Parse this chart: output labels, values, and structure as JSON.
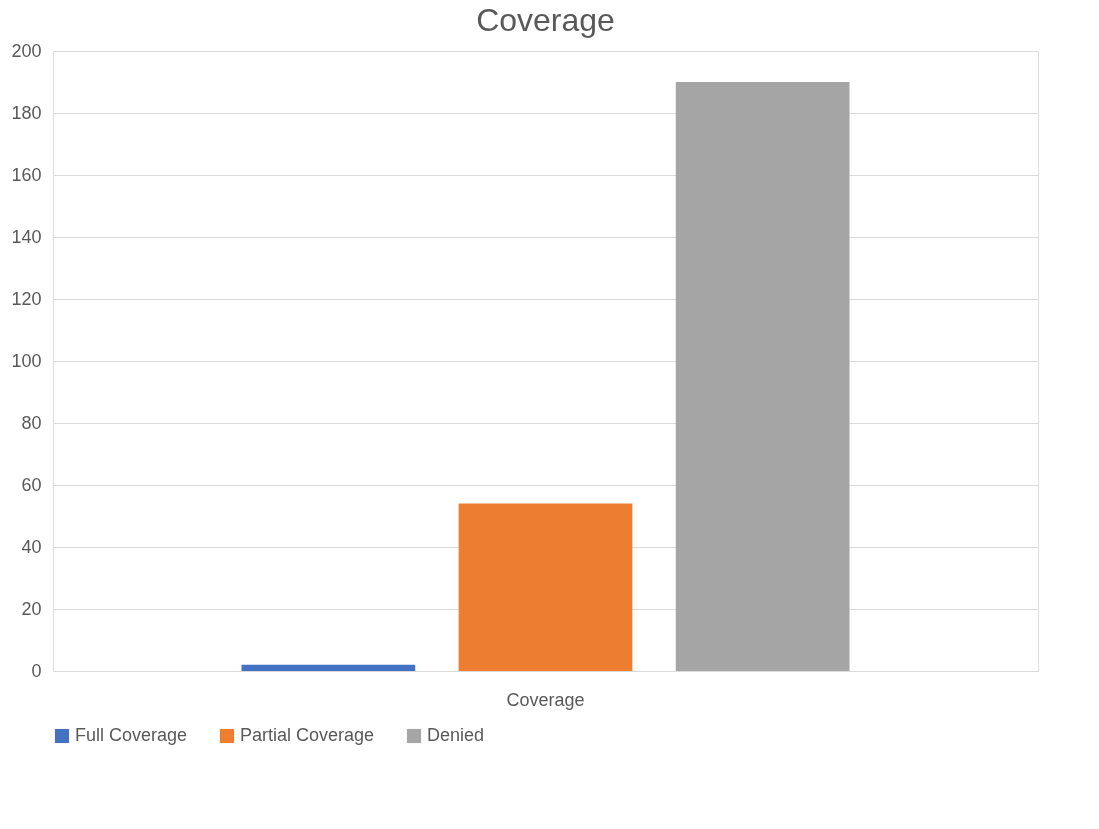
{
  "chart_data": {
    "type": "bar",
    "title": "Coverage",
    "categories": [
      "Coverage"
    ],
    "series": [
      {
        "name": "Full Coverage",
        "color": "#4472c4",
        "values": [
          2
        ]
      },
      {
        "name": "Partial Coverage",
        "color": "#ed7d31",
        "values": [
          54
        ]
      },
      {
        "name": "Denied",
        "color": "#a5a5a5",
        "values": [
          190
        ]
      }
    ],
    "ylim": [
      0,
      200
    ],
    "yticks": [
      0,
      20,
      40,
      60,
      80,
      100,
      120,
      140,
      160,
      180,
      200
    ],
    "grid": "y",
    "legend": "bottom"
  }
}
